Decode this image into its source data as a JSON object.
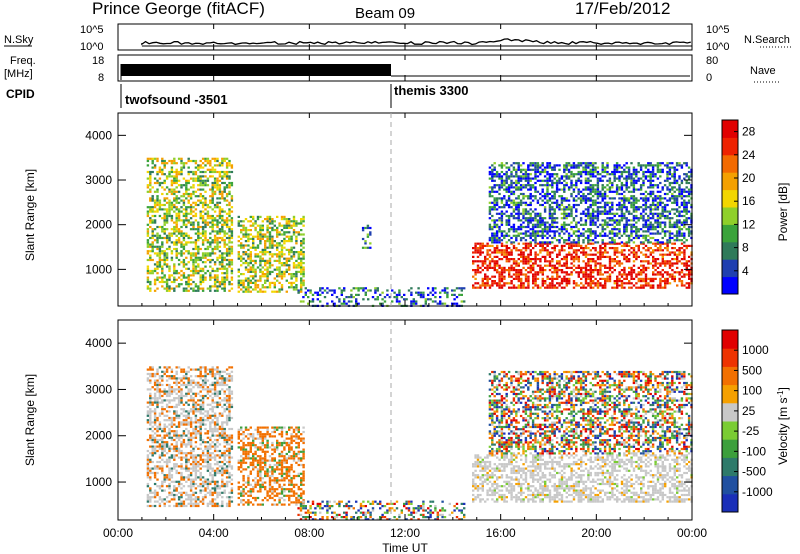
{
  "header": {
    "title": "Prince George (fitACF)",
    "beam": "Beam 09",
    "date": "17/Feb/2012"
  },
  "aux_panels": {
    "nsky_label": "N.Sky",
    "nsky_ticks": [
      "10^5",
      "10^0"
    ],
    "nsearch_label": "N.Search",
    "nsearch_ticks": [
      "10^5",
      "10^0"
    ],
    "freq_label": "Freq.",
    "freq_unit": "[MHz]",
    "freq_ticks": [
      "18",
      "8"
    ],
    "nave_label": "Nave",
    "nave_ticks": [
      "80",
      "0"
    ],
    "cpid_label": "CPID",
    "cpid_segments": [
      {
        "name": "twofsound -3501",
        "start_hour": 1.0,
        "end_hour": 12.0
      },
      {
        "name": "themis 3300",
        "start_hour": 12.0,
        "end_hour": 24.0
      }
    ]
  },
  "chart_data": [
    {
      "type": "heatmap",
      "parameter": "Power",
      "ylabel": "Slant Range [km]",
      "xlabel": "Time UT",
      "xlim": [
        0,
        24
      ],
      "ylim": [
        180,
        4500
      ],
      "x_ticks": [
        "00:00",
        "04:00",
        "08:00",
        "12:00",
        "16:00",
        "20:00",
        "00:00"
      ],
      "y_ticks": [
        1000,
        2000,
        3000,
        4000
      ],
      "colorbar": {
        "label": "Power [dB]",
        "ticks": [
          4,
          8,
          12,
          16,
          20,
          24,
          28
        ],
        "range": [
          0,
          30
        ],
        "colors": [
          "#0000ff",
          "#1f3fb0",
          "#2f7a5a",
          "#3aa33a",
          "#8fcf2a",
          "#f2d600",
          "#f4a000",
          "#f36a00",
          "#ee2200",
          "#e00000"
        ]
      },
      "echo_regions": [
        {
          "t0": 1.2,
          "t1": 4.8,
          "r0": 500,
          "r1": 3500,
          "level": 14
        },
        {
          "t0": 5.0,
          "t1": 7.8,
          "r0": 500,
          "r1": 2200,
          "level": 14
        },
        {
          "t0": 7.5,
          "t1": 14.5,
          "r0": 180,
          "r1": 600,
          "level": 6
        },
        {
          "t0": 10.2,
          "t1": 10.6,
          "r0": 1500,
          "r1": 2000,
          "level": 8
        },
        {
          "t0": 14.8,
          "t1": 24.0,
          "r0": 600,
          "r1": 1600,
          "level": 24
        },
        {
          "t0": 15.5,
          "t1": 24.0,
          "r0": 1600,
          "r1": 3400,
          "level": 6
        }
      ]
    },
    {
      "type": "heatmap",
      "parameter": "Velocity",
      "ylabel": "Slant Range [km]",
      "xlabel": "Time UT",
      "xlim": [
        0,
        24
      ],
      "ylim": [
        180,
        4500
      ],
      "x_ticks": [
        "00:00",
        "04:00",
        "08:00",
        "12:00",
        "16:00",
        "20:00",
        "00:00"
      ],
      "y_ticks": [
        1000,
        2000,
        3000,
        4000
      ],
      "colorbar": {
        "label": "Velocity [m s-1]",
        "ticks": [
          "1000",
          "500",
          "100",
          "25",
          "-25",
          "-100",
          "-500",
          "-1000"
        ],
        "colors": [
          "#1a2fb8",
          "#2050a0",
          "#2e7a6a",
          "#3c9f3c",
          "#7acc33",
          "#c8c8c8",
          "#f5a000",
          "#f27000",
          "#ee3300",
          "#e00000"
        ]
      },
      "echo_regions": [
        {
          "t0": 1.2,
          "t1": 4.8,
          "r0": 500,
          "r1": 3500,
          "level": "mixed-grey-orange"
        },
        {
          "t0": 5.0,
          "t1": 7.8,
          "r0": 500,
          "r1": 2200,
          "level": "orange"
        },
        {
          "t0": 7.5,
          "t1": 14.5,
          "r0": 180,
          "r1": 600,
          "level": "mixed"
        },
        {
          "t0": 14.8,
          "t1": 24.0,
          "r0": 600,
          "r1": 1600,
          "level": "grey"
        },
        {
          "t0": 15.5,
          "t1": 24.0,
          "r0": 1600,
          "r1": 3400,
          "level": "mixed"
        }
      ]
    }
  ]
}
